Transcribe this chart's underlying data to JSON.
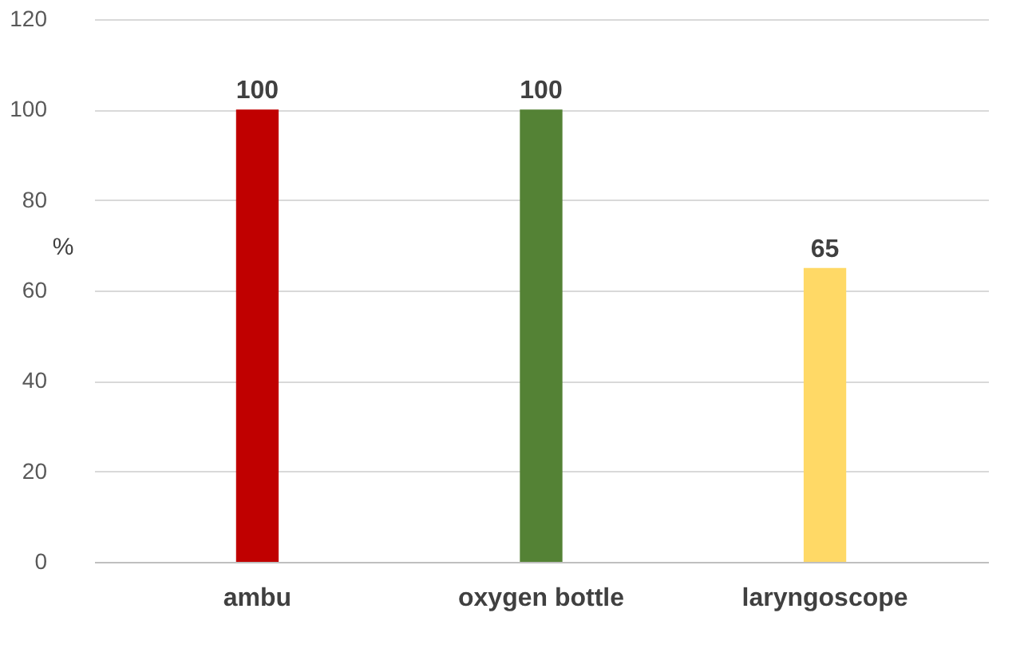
{
  "chart_data": {
    "type": "bar",
    "categories": [
      "ambu",
      "oxygen bottle",
      "laryngoscope"
    ],
    "values": [
      100,
      100,
      65
    ],
    "colors": [
      "#c00000",
      "#548235",
      "#ffd966"
    ],
    "ylabel": "%",
    "ylim": [
      0,
      120
    ],
    "yticks": [
      0,
      20,
      40,
      60,
      80,
      100,
      120
    ],
    "grid": "y",
    "data_labels": true,
    "legend": false
  }
}
